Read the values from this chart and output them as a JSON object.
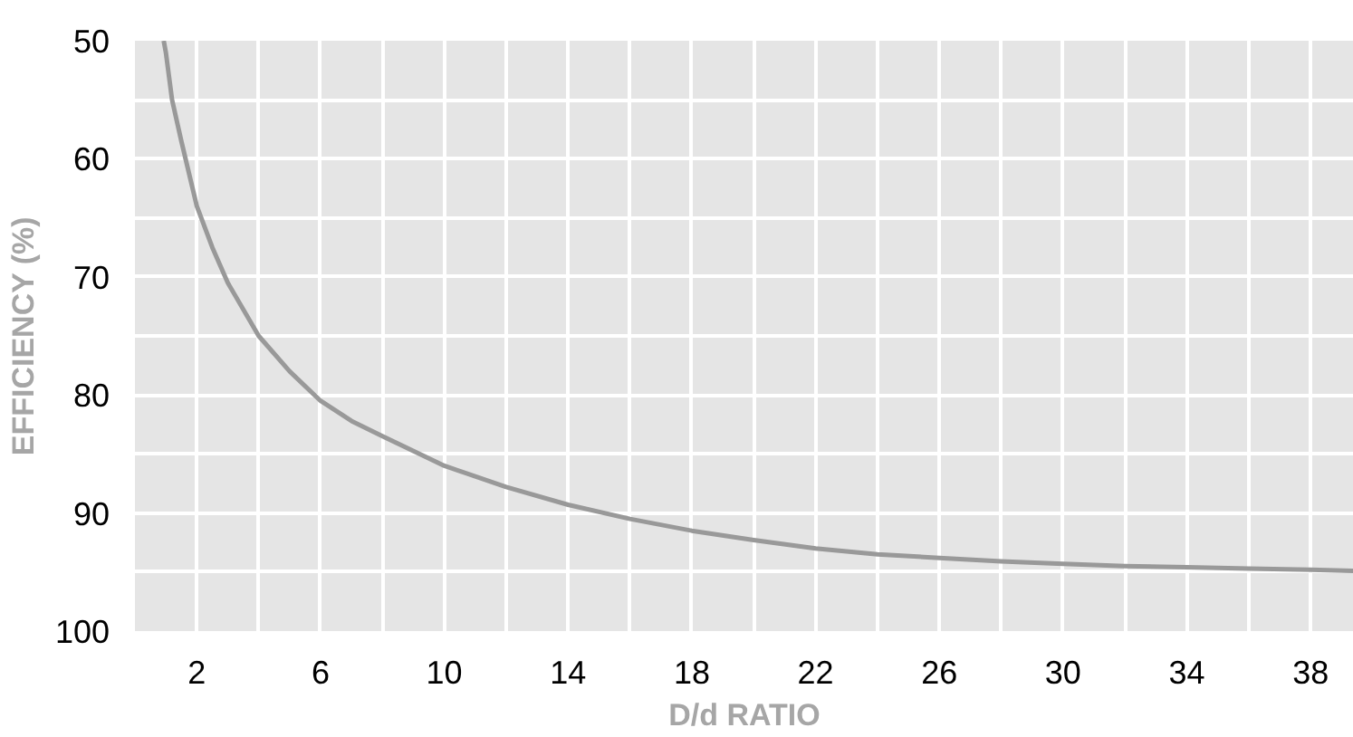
{
  "chart_data": {
    "type": "line",
    "xlabel": "D/d RATIO",
    "ylabel": "EFFICIENCY (%)",
    "series": [
      {
        "color": "#999999",
        "x": [
          0.93,
          1.0,
          1.2,
          1.5,
          2,
          2.5,
          3,
          4,
          5,
          6,
          7,
          8,
          10,
          12,
          14,
          16,
          18,
          20,
          22,
          24,
          26,
          28,
          30,
          32,
          34,
          36,
          38,
          39.4
        ],
        "values": [
          50,
          51,
          55,
          58.5,
          64,
          67.5,
          70.5,
          75,
          78,
          80.5,
          82.2,
          83.5,
          86,
          87.8,
          89.3,
          90.5,
          91.5,
          92.3,
          93,
          93.5,
          93.8,
          94.1,
          94.3,
          94.5,
          94.6,
          94.7,
          94.8,
          94.9
        ]
      }
    ],
    "xlim": [
      0,
      39.4
    ],
    "ylim": [
      100,
      50
    ],
    "xticks": [
      2,
      {
        "value": 4,
        "label": null
      },
      6,
      {
        "value": 8,
        "label": null
      },
      10,
      {
        "value": 12,
        "label": null
      },
      14,
      {
        "value": 16,
        "label": null
      },
      18,
      {
        "value": 20,
        "label": null
      },
      22,
      {
        "value": 24,
        "label": null
      },
      26,
      {
        "value": 28,
        "label": null
      },
      30,
      {
        "value": 32,
        "label": null
      },
      34,
      {
        "value": 36,
        "label": null
      },
      38
    ],
    "yticks": [
      50,
      {
        "value": 55,
        "label": null
      },
      60,
      {
        "value": 65,
        "label": null
      },
      70,
      {
        "value": 75,
        "label": null
      },
      80,
      {
        "value": 85,
        "label": null
      },
      90,
      {
        "value": 95,
        "label": null
      },
      100
    ],
    "grid": true,
    "line_style": "solid"
  }
}
